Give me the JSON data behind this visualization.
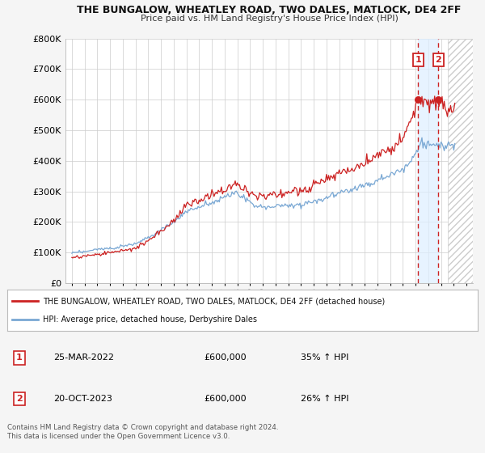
{
  "title": "THE BUNGALOW, WHEATLEY ROAD, TWO DALES, MATLOCK, DE4 2FF",
  "subtitle": "Price paid vs. HM Land Registry's House Price Index (HPI)",
  "legend_line1": "THE BUNGALOW, WHEATLEY ROAD, TWO DALES, MATLOCK, DE4 2FF (detached house)",
  "legend_line2": "HPI: Average price, detached house, Derbyshire Dales",
  "sale1_date": "25-MAR-2022",
  "sale1_price": "£600,000",
  "sale1_hpi": "35% ↑ HPI",
  "sale2_date": "20-OCT-2023",
  "sale2_price": "£600,000",
  "sale2_hpi": "26% ↑ HPI",
  "footer": "Contains HM Land Registry data © Crown copyright and database right 2024.\nThis data is licensed under the Open Government Licence v3.0.",
  "hpi_color": "#7aa8d4",
  "property_color": "#cc2222",
  "marker1_year": 2022.21,
  "marker2_year": 2023.79,
  "ylim": [
    0,
    800000
  ],
  "yticks": [
    0,
    100000,
    200000,
    300000,
    400000,
    500000,
    600000,
    700000,
    800000
  ],
  "xlim_start": 1994.5,
  "xlim_end": 2026.5,
  "background_color": "#f5f5f5",
  "plot_bg": "#ffffff",
  "grid_color": "#cccccc",
  "shade_color": "#ddeeff",
  "hatch_color": "#cccccc"
}
